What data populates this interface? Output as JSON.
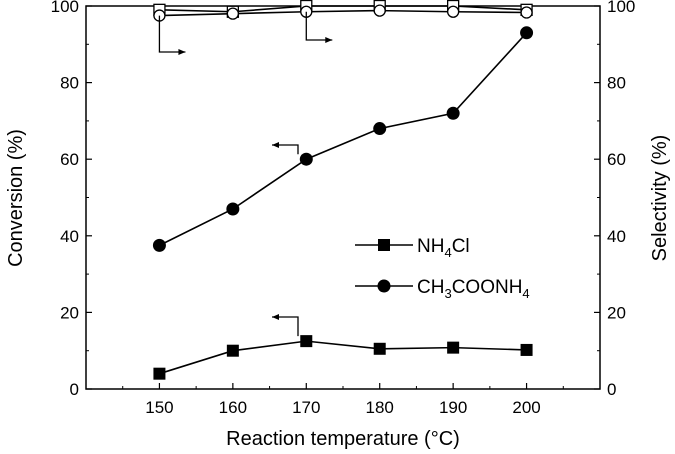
{
  "chart_data": {
    "type": "line",
    "x": [
      150,
      160,
      170,
      180,
      190,
      200
    ],
    "xlabel": "Reaction temperature (°C)",
    "ylabel_left": "Conversion (%)",
    "ylabel_right": "Selectivity (%)",
    "xlim": [
      140,
      210
    ],
    "ylim_left": [
      0,
      100
    ],
    "ylim_right": [
      0,
      100
    ],
    "xticks": [
      "150",
      "160",
      "170",
      "180",
      "190",
      "200"
    ],
    "yticks_left": [
      "0",
      "20",
      "40",
      "60",
      "80",
      "100"
    ],
    "yticks_right": [
      "0",
      "20",
      "40",
      "60",
      "80",
      "100"
    ],
    "grid": false,
    "legend_position": "center-right",
    "legend": {
      "nh4cl": {
        "base": "NH",
        "sub": "4",
        "rest": "Cl"
      },
      "ch3coonh4": {
        "base": "CH",
        "sub1": "3",
        "mid": "COONH",
        "sub2": "4"
      }
    },
    "series": [
      {
        "name": "NH4Cl",
        "key": "nh4cl",
        "kind": "conversion",
        "axis": "left",
        "marker": "filled-square",
        "values": [
          4,
          10,
          12.5,
          10.5,
          10.8,
          10.2
        ]
      },
      {
        "name": "CH3COONH4",
        "key": "ch3coonh4",
        "kind": "conversion",
        "axis": "left",
        "marker": "filled-circle",
        "values": [
          37.5,
          47,
          60,
          68,
          72,
          93
        ]
      },
      {
        "name": "NH4Cl",
        "key": "nh4cl-sel",
        "kind": "selectivity",
        "axis": "right",
        "marker": "open-square",
        "values": [
          99,
          98.5,
          100,
          100,
          100,
          99
        ]
      },
      {
        "name": "CH3COONH4",
        "key": "ch3coonh4-sel",
        "kind": "selectivity",
        "axis": "right",
        "marker": "open-circle",
        "values": [
          97.5,
          98,
          98.5,
          98.8,
          98.5,
          98.3
        ]
      }
    ]
  }
}
